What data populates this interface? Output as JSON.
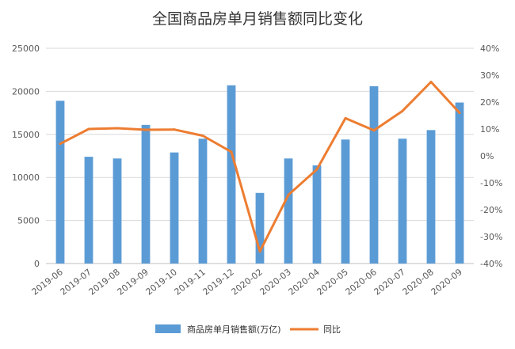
{
  "chart_data": {
    "type": "bar",
    "title": "全国商品房单月销售额同比变化",
    "categories": [
      "2019-06",
      "2019-07",
      "2019-08",
      "2019-09",
      "2019-10",
      "2019-11",
      "2019-12",
      "2020-02",
      "2020-03",
      "2020-04",
      "2020-05",
      "2020-06",
      "2020-07",
      "2020-08",
      "2020-09"
    ],
    "series": [
      {
        "name": "商品房单月销售额(万亿)",
        "type": "bar",
        "axis": "left",
        "color": "#5b9bd5",
        "values": [
          18900,
          12400,
          12200,
          16100,
          12900,
          14500,
          20700,
          8200,
          12200,
          11400,
          14400,
          20600,
          14500,
          15500,
          18700
        ]
      },
      {
        "name": "同比",
        "type": "line",
        "axis": "right",
        "color": "#ed7d31",
        "values": [
          4.5,
          10,
          10.3,
          9.7,
          9.8,
          7.5,
          1.5,
          -35.5,
          -14.5,
          -5,
          14,
          9.5,
          16.7,
          27.5,
          16
        ]
      }
    ],
    "y_left": {
      "min": 0,
      "max": 25000,
      "step": 5000,
      "tick_labels": [
        "0",
        "5000",
        "10000",
        "15000",
        "20000",
        "25000"
      ]
    },
    "y_right": {
      "min": -40,
      "max": 40,
      "step": 10,
      "tick_labels": [
        "-40%",
        "-30%",
        "-20%",
        "-10%",
        "0%",
        "10%",
        "20%",
        "30%",
        "40%"
      ]
    },
    "grid": true,
    "legend_position": "bottom"
  }
}
